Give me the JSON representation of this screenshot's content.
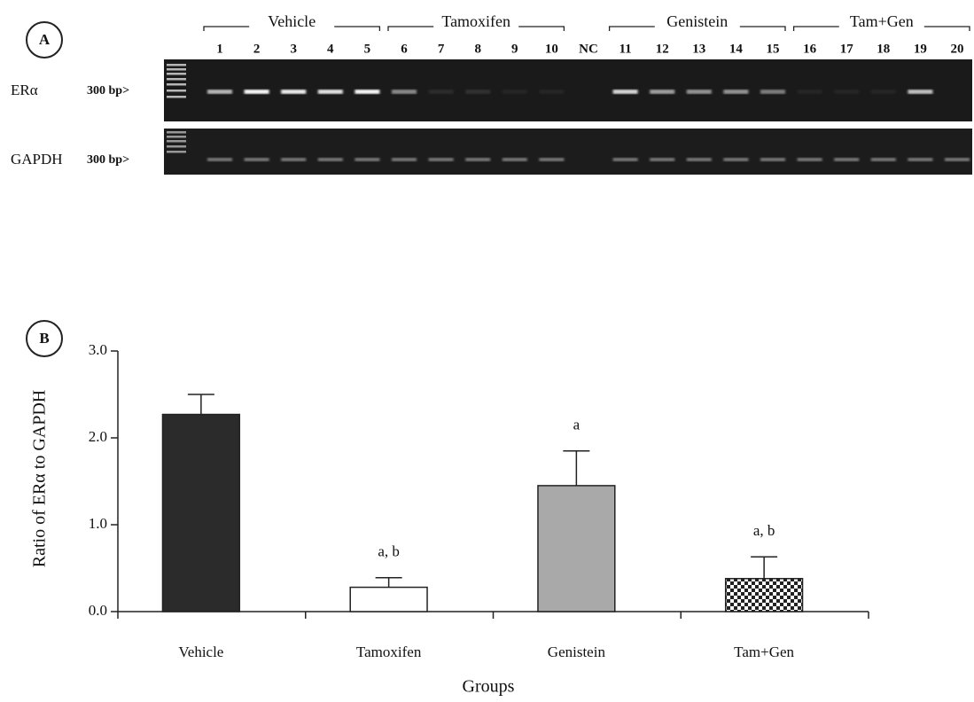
{
  "gel": {
    "panel_label": "A",
    "groups": [
      "Vehicle",
      "Tamoxifen",
      "Genistein",
      "Tam+Gen"
    ],
    "lanes": [
      "1",
      "2",
      "3",
      "4",
      "5",
      "6",
      "7",
      "8",
      "9",
      "10",
      "NC",
      "11",
      "12",
      "13",
      "14",
      "15",
      "16",
      "17",
      "18",
      "19",
      "20"
    ],
    "rows": [
      {
        "name": "ERα",
        "size": "300 bp>"
      },
      {
        "name": "GAPDH",
        "size": "300 bp>"
      }
    ]
  },
  "chart_data": {
    "type": "bar",
    "panel_label": "B",
    "y_label": "Ratio of ERα to GAPDH",
    "x_label": "Groups",
    "categories": [
      "Vehicle",
      "Tamoxifen",
      "Genistein",
      "Tam+Gen"
    ],
    "values": [
      2.27,
      0.28,
      1.45,
      0.38
    ],
    "errors": [
      0.23,
      0.11,
      0.4,
      0.25
    ],
    "annotations": [
      null,
      "a, b",
      "a",
      "a, b"
    ],
    "colors": [
      "#2b2b2b",
      "#ffffff",
      "#a9a9a9",
      "checker"
    ],
    "ylim": [
      0,
      3.0
    ],
    "yticks": [
      {
        "value": 0,
        "label": "0.0"
      },
      {
        "value": 1,
        "label": "1.0"
      },
      {
        "value": 2,
        "label": "2.0"
      },
      {
        "value": 3,
        "label": "3.0"
      }
    ]
  }
}
